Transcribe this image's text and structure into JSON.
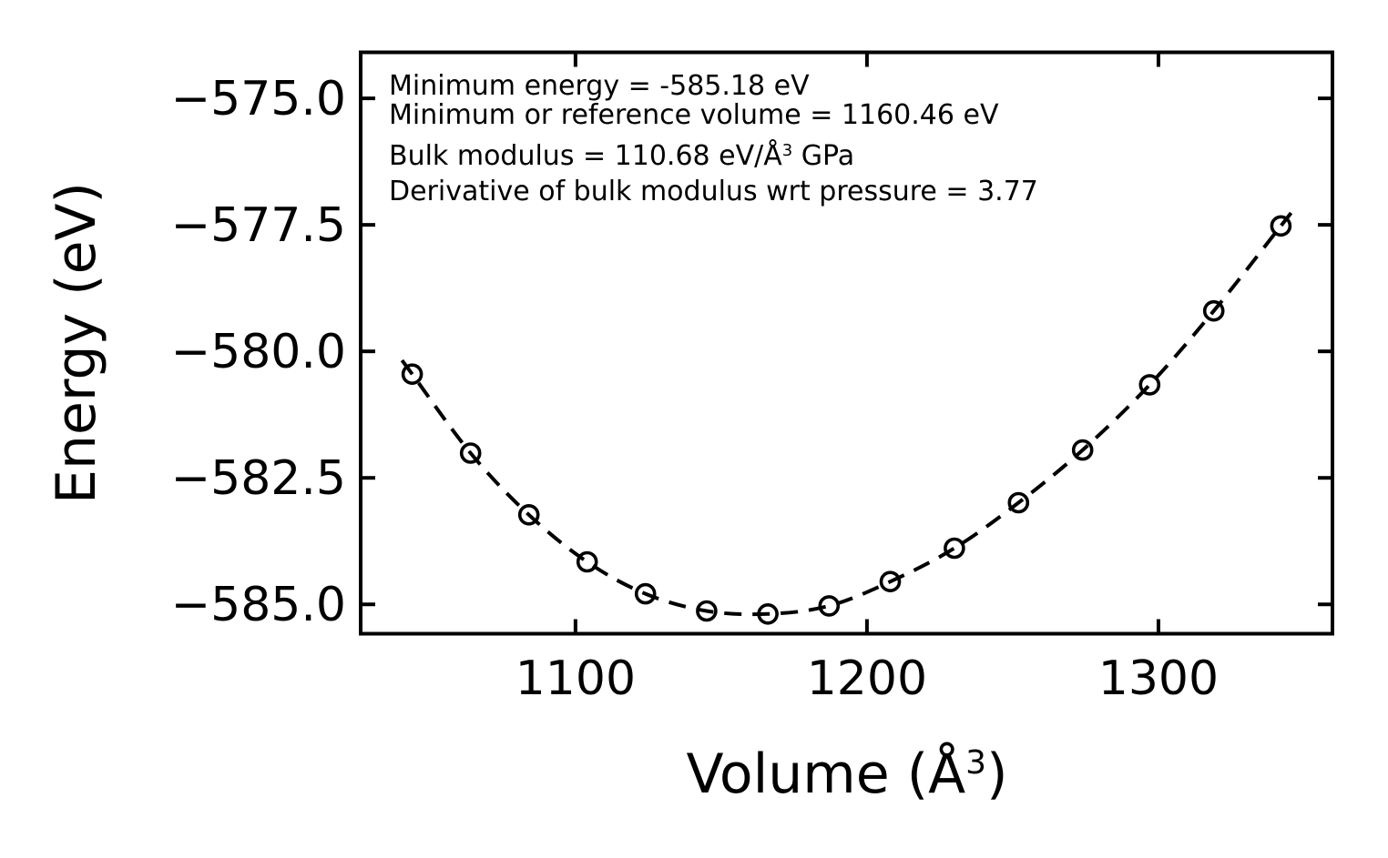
{
  "figure": {
    "background_color": "#ffffff",
    "foreground_color": "#000000"
  },
  "chart_data": {
    "type": "scatter",
    "title": "",
    "xlabel": "Volume (Å³)",
    "ylabel": "Energy (eV)",
    "xlabel_parts": [
      {
        "t": "Volume (Å"
      },
      {
        "t": "3",
        "sup": true
      },
      {
        "t": ")"
      }
    ],
    "xlim": [
      1026.3,
      1359.7
    ],
    "ylim": [
      -585.58,
      -574.09
    ],
    "xticks": [
      1100,
      1200,
      1300
    ],
    "yticks": [
      -575.0,
      -577.5,
      -580.0,
      -582.5,
      -585.0
    ],
    "grid": false,
    "legend": null,
    "series": [
      {
        "name": "energy-volume-data",
        "type": "scatter",
        "marker": "open-circle",
        "color": "#000000",
        "x": [
          1044,
          1064,
          1084,
          1104,
          1124,
          1145,
          1166,
          1187,
          1208,
          1230,
          1252,
          1274,
          1297,
          1319,
          1342
        ],
        "y": [
          -580.45,
          -582.01,
          -583.23,
          -584.16,
          -584.79,
          -585.13,
          -585.19,
          -585.03,
          -584.55,
          -583.89,
          -582.99,
          -581.95,
          -580.66,
          -579.2,
          -577.52
        ]
      },
      {
        "name": "equation-of-state-fit",
        "type": "line",
        "style": "dashed",
        "color": "#000000",
        "fit_params": {
          "E0_eV": -585.18,
          "V0_A3": 1160.46,
          "B0_GPa": 110.68,
          "B0_prime": 3.77
        },
        "v_range": [
          1040.5,
          1345.5
        ]
      }
    ],
    "annotation_lines": [
      [
        {
          "t": "Minimum energy = -585.18 eV"
        }
      ],
      [
        {
          "t": "Minimum or reference volume = 1160.46 eV"
        }
      ],
      [
        {
          "t": "Bulk modulus = 110.68 eV/Å"
        },
        {
          "t": "3",
          "sup": true
        },
        {
          "t": " GPa"
        }
      ],
      [
        {
          "t": "Derivative of bulk modulus wrt pressure = 3.77"
        }
      ]
    ]
  }
}
